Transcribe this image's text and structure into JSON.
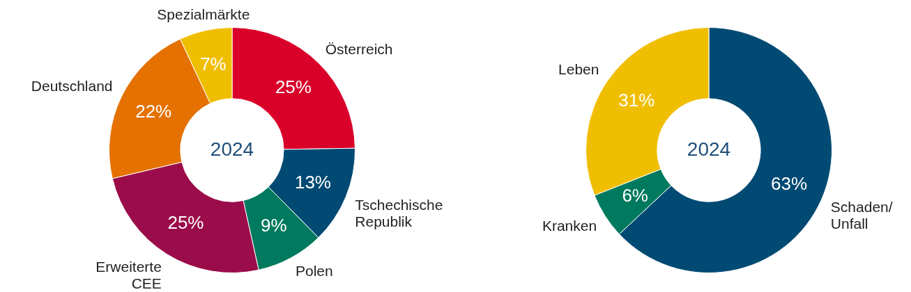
{
  "chart_data": [
    {
      "type": "donut",
      "categories": [
        "Österreich",
        "Tschechische Republik",
        "Polen",
        "Erweiterte CEE",
        "Deutschland",
        "Spezialmärkte"
      ],
      "values": [
        25,
        13,
        9,
        25,
        22,
        7
      ],
      "colors": [
        "#d9002a",
        "#004a73",
        "#007a5e",
        "#9b0d4a",
        "#e57100",
        "#f0be00"
      ],
      "value_labels": [
        "25%",
        "13%",
        "9%",
        "25%",
        "22%",
        "7%"
      ],
      "annotations": [
        "2024"
      ],
      "legend": false
    },
    {
      "type": "donut",
      "categories": [
        "Schaden/Unfall",
        "Kranken",
        "Leben"
      ],
      "values": [
        63,
        6,
        31
      ],
      "colors": [
        "#004a73",
        "#007a5e",
        "#f0be00"
      ],
      "value_labels": [
        "63%",
        "6%",
        "31%"
      ],
      "annotations": [
        "2024"
      ],
      "legend": false
    }
  ]
}
